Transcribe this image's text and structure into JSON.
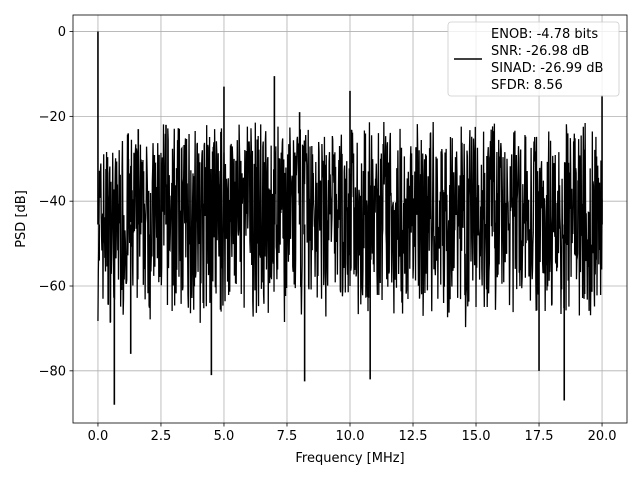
{
  "chart_data": {
    "type": "line",
    "title": "",
    "xlabel": "Frequency [MHz]",
    "ylabel": "PSD [dB]",
    "xlim": [
      -0.99,
      20.99
    ],
    "ylim": [
      -92.3,
      3.9
    ],
    "grid": true,
    "legend": {
      "placement": "top-right",
      "entries": [
        "ENOB: -4.78 bits",
        "SNR: -26.98 dB",
        "SINAD: -26.99 dB",
        "SFDR: 8.56"
      ]
    },
    "xticks": [
      {
        "value": 0.0,
        "label": "0.0"
      },
      {
        "value": 2.5,
        "label": "2.5"
      },
      {
        "value": 5.0,
        "label": "5.0"
      },
      {
        "value": 7.5,
        "label": "7.5"
      },
      {
        "value": 10.0,
        "label": "10.0"
      },
      {
        "value": 12.5,
        "label": "12.5"
      },
      {
        "value": 15.0,
        "label": "15.0"
      },
      {
        "value": 17.5,
        "label": "17.5"
      },
      {
        "value": 20.0,
        "label": "20.0"
      }
    ],
    "yticks": [
      {
        "value": 0,
        "label": "0"
      },
      {
        "value": -20,
        "label": "−20"
      },
      {
        "value": -40,
        "label": "−40"
      },
      {
        "value": -60,
        "label": "−60"
      },
      {
        "value": -80,
        "label": "−80"
      }
    ],
    "series": [
      {
        "color": "#000000",
        "noise_floor": {
          "x_start": 0.0,
          "x_end": 20.0,
          "upper_db": -21,
          "lower_db": -70
        },
        "spikes": [
          {
            "x": 0.0,
            "y": 0.0
          },
          {
            "x": 0.05,
            "y": -54.0
          },
          {
            "x": 1.2,
            "y": -24.0
          },
          {
            "x": 1.6,
            "y": -23.0
          },
          {
            "x": 2.7,
            "y": -22.0
          },
          {
            "x": 5.0,
            "y": -13.0
          },
          {
            "x": 7.0,
            "y": -10.5
          },
          {
            "x": 8.0,
            "y": -19.0
          },
          {
            "x": 10.0,
            "y": -14.0
          },
          {
            "x": 20.0,
            "y": -15.0
          }
        ],
        "dips": [
          {
            "x": 0.65,
            "y": -88.0
          },
          {
            "x": 1.3,
            "y": -76.0
          },
          {
            "x": 4.5,
            "y": -81.0
          },
          {
            "x": 8.2,
            "y": -82.5
          },
          {
            "x": 10.8,
            "y": -82.0
          },
          {
            "x": 17.5,
            "y": -80.0
          },
          {
            "x": 18.5,
            "y": -87.0
          }
        ]
      }
    ]
  }
}
